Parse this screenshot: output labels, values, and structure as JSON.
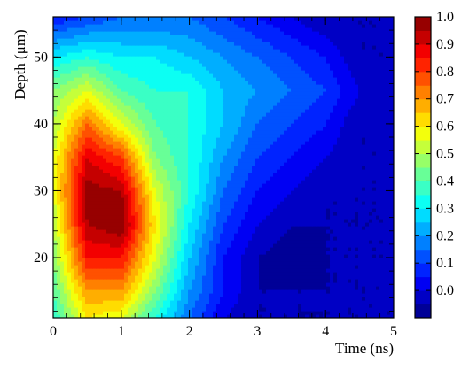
{
  "chart_data": {
    "type": "heatmap",
    "xlabel": "Time (ns)",
    "ylabel": "Depth (μm)",
    "xlim": [
      0,
      5
    ],
    "ylim": [
      11,
      56
    ],
    "x_ticks": [
      0,
      1,
      2,
      3,
      4,
      5
    ],
    "y_ticks": [
      20,
      30,
      40,
      50
    ],
    "colorbar": {
      "range": [
        -0.1,
        1.0
      ],
      "ticks": [
        0.0,
        0.1,
        0.2,
        0.3,
        0.4,
        0.5,
        0.6,
        0.7,
        0.8,
        0.9,
        1.0
      ],
      "tick_labels": [
        "0.0",
        "0.1",
        "0.2",
        "0.3",
        "0.4",
        "0.5",
        "0.6",
        "0.7",
        "0.8",
        "0.9",
        "1.0"
      ],
      "colormap": "jet",
      "levels": 22
    },
    "x": [
      0,
      0.5,
      1,
      1.5,
      2,
      2.5,
      3,
      3.5,
      4,
      4.5,
      5
    ],
    "y": [
      11,
      15,
      20,
      25,
      30,
      35,
      40,
      45,
      50,
      56
    ],
    "z": [
      [
        0.35,
        0.6,
        0.55,
        0.35,
        0.15,
        0.0,
        -0.05,
        -0.05,
        -0.05,
        -0.05,
        -0.05
      ],
      [
        0.4,
        0.7,
        0.7,
        0.45,
        0.2,
        0.05,
        -0.05,
        -0.05,
        -0.05,
        -0.05,
        -0.05
      ],
      [
        0.45,
        0.85,
        0.85,
        0.55,
        0.25,
        0.05,
        -0.05,
        -0.08,
        -0.05,
        -0.05,
        -0.05
      ],
      [
        0.5,
        0.95,
        1.0,
        0.6,
        0.3,
        0.1,
        0.0,
        -0.05,
        -0.05,
        -0.05,
        -0.05
      ],
      [
        0.55,
        0.98,
        0.95,
        0.55,
        0.35,
        0.15,
        0.05,
        0.0,
        -0.05,
        -0.05,
        -0.05
      ],
      [
        0.55,
        0.9,
        0.8,
        0.45,
        0.35,
        0.2,
        0.1,
        0.05,
        0.0,
        -0.05,
        -0.05
      ],
      [
        0.5,
        0.75,
        0.55,
        0.4,
        0.35,
        0.25,
        0.15,
        0.1,
        0.05,
        -0.05,
        -0.05
      ],
      [
        0.45,
        0.55,
        0.4,
        0.35,
        0.35,
        0.25,
        0.2,
        0.15,
        0.1,
        0.0,
        -0.05
      ],
      [
        0.3,
        0.35,
        0.3,
        0.3,
        0.25,
        0.2,
        0.15,
        0.1,
        0.05,
        -0.05,
        -0.05
      ],
      [
        0.05,
        0.1,
        0.15,
        0.15,
        0.15,
        0.1,
        0.05,
        0.0,
        -0.05,
        -0.05,
        -0.05
      ]
    ]
  }
}
